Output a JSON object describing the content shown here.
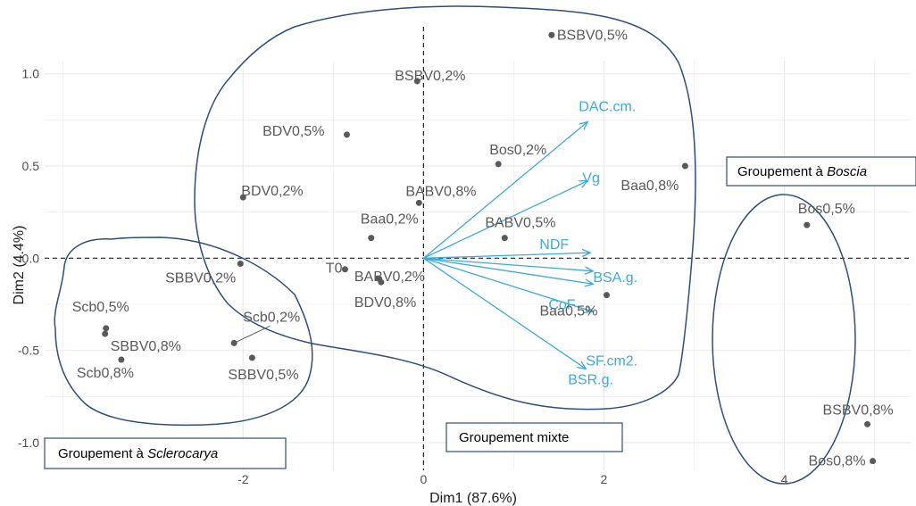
{
  "chart_data": {
    "type": "scatter",
    "xlabel": "Dim1 (87.6%)",
    "ylabel": "Dim2 (4.4%)",
    "xlim": [
      -4.2,
      5.4
    ],
    "ylim": [
      -1.15,
      1.4
    ],
    "x_ticks": [
      -2,
      0,
      2,
      4
    ],
    "x_tick_labels": [
      "-2",
      "0",
      "2",
      "4"
    ],
    "y_ticks": [
      -1.0,
      -0.5,
      0.0,
      0.5,
      1.0
    ],
    "y_tick_labels": [
      "-1.0",
      "-0.5",
      "0.0",
      "0.5",
      "1.0"
    ],
    "grid": true,
    "colors": {
      "points": "#595959",
      "variables": "#3ea8dc",
      "ellipse": "#2e4d7b",
      "grid": "#ebebeb"
    },
    "points": [
      {
        "label": "BSBV0,5%",
        "x": 1.42,
        "y": 1.21
      },
      {
        "label": "BSBV0,2%",
        "x": -0.07,
        "y": 0.96
      },
      {
        "label": "BDV0,5%",
        "x": -0.85,
        "y": 0.67
      },
      {
        "label": "BDV0,2%",
        "x": -2.0,
        "y": 0.33
      },
      {
        "label": "Bos0,2%",
        "x": 0.83,
        "y": 0.51
      },
      {
        "label": "Baa0,8%",
        "x": 2.9,
        "y": 0.5
      },
      {
        "label": "BABV0,8%",
        "x": -0.05,
        "y": 0.3
      },
      {
        "label": "Baa0,2%",
        "x": -0.58,
        "y": 0.11
      },
      {
        "label": "BABV0,5%",
        "x": 0.9,
        "y": 0.11
      },
      {
        "label": "T0",
        "x": -0.87,
        "y": -0.06
      },
      {
        "label": "BABV0,2%",
        "x": -0.5,
        "y": -0.11
      },
      {
        "label": "BDV0,8%",
        "x": -0.47,
        "y": -0.13
      },
      {
        "label": "Baa0,5%",
        "x": 2.03,
        "y": -0.2
      },
      {
        "label": "SBBV0,2%",
        "x": -2.03,
        "y": -0.03
      },
      {
        "label": "Scb0,5%",
        "x": -3.52,
        "y": -0.38
      },
      {
        "label": "SBBV0,8%",
        "x": -3.53,
        "y": -0.41
      },
      {
        "label": "Scb0,2%",
        "x": -2.1,
        "y": -0.46
      },
      {
        "label": "Scb0,8%",
        "x": -3.35,
        "y": -0.55
      },
      {
        "label": "SBBV0,5%",
        "x": -1.9,
        "y": -0.54
      },
      {
        "label": "Bos0,5%",
        "x": 4.25,
        "y": 0.18
      },
      {
        "label": "BSBV0,8%",
        "x": 4.92,
        "y": -0.9
      },
      {
        "label": "Bos0,8%",
        "x": 4.98,
        "y": -1.1
      }
    ],
    "variables": [
      {
        "label": "DAC.cm.",
        "x": 1.82,
        "y": 0.74
      },
      {
        "label": "Vg",
        "x": 1.82,
        "y": 0.42
      },
      {
        "label": "NDF",
        "x": 1.85,
        "y": 0.03
      },
      {
        "label": "BSA.g.",
        "x": 1.88,
        "y": -0.07
      },
      {
        "label": "CoF",
        "x": 1.88,
        "y": -0.14
      },
      {
        "label": "SF.cm2.",
        "x": 1.88,
        "y": -0.29
      },
      {
        "label": "BSR.g.",
        "x": 1.8,
        "y": -0.6
      }
    ],
    "groups": [
      {
        "label_prefix": "Groupement à ",
        "label_italic": "Sclerocarya"
      },
      {
        "label_prefix": "Groupement mixte",
        "label_italic": ""
      },
      {
        "label_prefix": "Groupement à ",
        "label_italic": "Boscia"
      }
    ]
  }
}
